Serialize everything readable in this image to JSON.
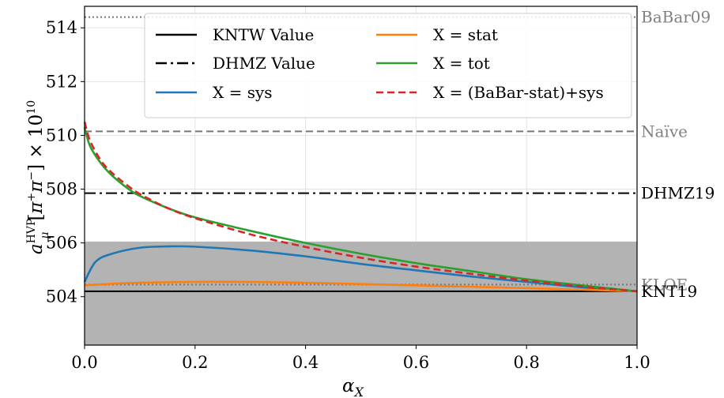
{
  "chart_data": {
    "type": "line",
    "xlabel": "α_X",
    "ylabel": "a_μ^HVP[π+π−] × 10^10",
    "xlim": [
      0.0,
      1.0
    ],
    "ylim": [
      502.2,
      514.8
    ],
    "x_ticks": [
      "0.0",
      "0.2",
      "0.4",
      "0.6",
      "0.8",
      "1.0"
    ],
    "y_ticks": [
      "504",
      "506",
      "508",
      "510",
      "512",
      "514"
    ],
    "grid": true,
    "legend_position": "top",
    "shaded_band": {
      "y_low": 502.2,
      "y_high": 506.05,
      "color": "#b3b3b3"
    },
    "reference_lines": [
      {
        "label": "BaBar09",
        "y": 514.4,
        "style": "dotted",
        "color": "#777777"
      },
      {
        "label": "Naïve",
        "y": 510.15,
        "style": "dashed",
        "color": "#777777"
      },
      {
        "label": "DHMZ19",
        "y": 507.85,
        "style": "dashdot",
        "color": "#000000"
      },
      {
        "label": "KLOE",
        "y": 504.45,
        "style": "dotted",
        "color": "#777777"
      },
      {
        "label": "KNT19",
        "y": 504.2,
        "style": "solid",
        "color": "#000000"
      }
    ],
    "legend": [
      {
        "label": "KNTW Value",
        "style": "solid",
        "color": "#000000"
      },
      {
        "label": "X = stat",
        "style": "solid",
        "color": "#ff7f0e"
      },
      {
        "label": "DHMZ Value",
        "style": "dashdot",
        "color": "#000000"
      },
      {
        "label": "X = tot",
        "style": "solid",
        "color": "#2ca02c"
      },
      {
        "label": "X = sys",
        "style": "solid",
        "color": "#1f77b4"
      },
      {
        "label": "X = (BaBar-stat)+sys",
        "style": "dashed",
        "color": "#d62728"
      }
    ],
    "series": [
      {
        "name": "X = sys",
        "color": "#1f77b4",
        "style": "solid",
        "x": [
          0.0,
          0.02,
          0.05,
          0.1,
          0.15,
          0.2,
          0.3,
          0.4,
          0.5,
          0.6,
          0.7,
          0.8,
          0.9,
          1.0
        ],
        "y": [
          504.55,
          505.3,
          505.6,
          505.82,
          505.87,
          505.86,
          505.72,
          505.5,
          505.22,
          504.98,
          504.75,
          504.55,
          504.35,
          504.2
        ]
      },
      {
        "name": "X = stat",
        "color": "#ff7f0e",
        "style": "solid",
        "x": [
          0.0,
          0.05,
          0.1,
          0.2,
          0.3,
          0.4,
          0.5,
          0.6,
          0.7,
          0.8,
          0.9,
          1.0
        ],
        "y": [
          504.42,
          504.48,
          504.52,
          504.55,
          504.55,
          504.52,
          504.47,
          504.42,
          504.37,
          504.32,
          504.26,
          504.2
        ]
      },
      {
        "name": "X = tot",
        "color": "#2ca02c",
        "style": "solid",
        "x": [
          0.0,
          0.01,
          0.03,
          0.05,
          0.08,
          0.1,
          0.15,
          0.2,
          0.3,
          0.4,
          0.5,
          0.6,
          0.7,
          0.8,
          0.9,
          1.0
        ],
        "y": [
          510.3,
          509.6,
          508.95,
          508.5,
          508.0,
          507.75,
          507.3,
          506.95,
          506.45,
          506.0,
          505.6,
          505.25,
          504.95,
          504.65,
          504.42,
          504.2
        ]
      },
      {
        "name": "X = (BaBar-stat)+sys",
        "color": "#d62728",
        "style": "dashed",
        "x": [
          0.0,
          0.01,
          0.03,
          0.05,
          0.08,
          0.1,
          0.15,
          0.2,
          0.3,
          0.4,
          0.5,
          0.6,
          0.7,
          0.8,
          0.9,
          1.0
        ],
        "y": [
          510.5,
          509.8,
          509.05,
          508.6,
          508.1,
          507.82,
          507.3,
          506.92,
          506.32,
          505.85,
          505.45,
          505.12,
          504.85,
          504.6,
          504.38,
          504.2
        ]
      }
    ]
  }
}
